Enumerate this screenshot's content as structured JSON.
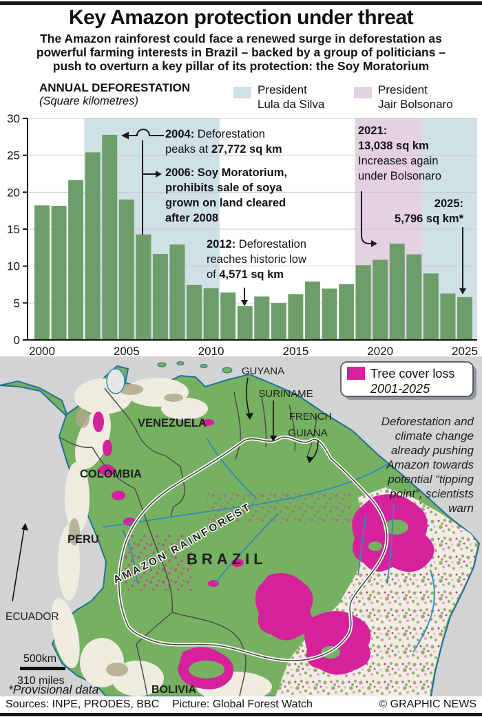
{
  "header": {
    "title": "Key Amazon protection under threat",
    "subtitle_lines": [
      "The Amazon rainforest could face a renewed surge in deforestation as",
      "powerful farming interests in Brazil – backed by a group of politicians –",
      "push to overturn a key pillar of its protection: the Soy Moratorium"
    ]
  },
  "chart": {
    "heading": "ANNUAL DEFORESTATION",
    "heading_sub": "(Square kilometres)",
    "legend": [
      {
        "color": "#cfe0e6",
        "line1": "President",
        "line2": "Lula da Silva"
      },
      {
        "color": "#e4d2e2",
        "line1": "President",
        "line2": "Jair Bolsonaro"
      }
    ],
    "annotations": {
      "a2004": {
        "b1": "2004:",
        "r1": " Deforestation",
        "r2": "peaks at ",
        "b2": "27,772 sq km"
      },
      "a2006": {
        "l1": "2006: Soy Moratorium,",
        "l2": "prohibits sale of soya",
        "l3": "grown on land cleared",
        "l4": "after 2008"
      },
      "a2012": {
        "b1": "2012:",
        "r1": " Deforestation",
        "r2": "reaches historic low",
        "r3": "of ",
        "b2": "4,571 sq km"
      },
      "a2021": {
        "b1": "2021:",
        "b2": "13,038 sq km",
        "r1": "Increases again",
        "r2": "under Bolsonaro"
      },
      "a2025": {
        "b1": "2025:",
        "b2": "5,796 sq km*"
      }
    }
  },
  "chart_data": {
    "type": "bar",
    "title": "ANNUAL DEFORESTATION",
    "subtitle": "(Square kilometres)",
    "unit": "sq km (axis shown in thousands)",
    "x": [
      2000,
      2001,
      2002,
      2003,
      2004,
      2005,
      2006,
      2007,
      2008,
      2009,
      2010,
      2011,
      2012,
      2013,
      2014,
      2015,
      2016,
      2017,
      2018,
      2019,
      2020,
      2021,
      2022,
      2023,
      2024,
      2025
    ],
    "values": [
      18226,
      18165,
      21651,
      25396,
      27772,
      19014,
      14286,
      11651,
      12911,
      7464,
      7000,
      6418,
      4571,
      5891,
      5012,
      6207,
      7893,
      6947,
      7536,
      10129,
      10851,
      13038,
      11594,
      9001,
      6288,
      5796
    ],
    "ylim": [
      0,
      30000
    ],
    "y_ticks": [
      0,
      5000,
      10000,
      15000,
      20000,
      25000,
      30000
    ],
    "y_tick_labels": [
      "0",
      "5",
      "10",
      "15",
      "20",
      "25",
      "30"
    ],
    "x_tick_years": [
      2000,
      2005,
      2010,
      2015,
      2020,
      2025
    ],
    "bar_color": "#6d9e6a",
    "grid": true,
    "bands": [
      {
        "label": "President Lula da Silva",
        "from": 2003,
        "to": 2010,
        "color": "#cfe0e6"
      },
      {
        "label": "President Jair Bolsonaro",
        "from": 2019,
        "to": 2022,
        "color": "#e4d2e2"
      },
      {
        "label": "President Lula da Silva",
        "from": 2023,
        "to": 2025,
        "color": "#cfe0e6"
      }
    ],
    "annotations": [
      {
        "year": 2004,
        "text": "2004: Deforestation peaks at 27,772 sq km"
      },
      {
        "year": 2006,
        "text": "2006: Soy Moratorium, prohibits sale of soya grown on land cleared after 2008"
      },
      {
        "year": 2012,
        "text": "2012: Deforestation reaches historic low of 4,571 sq km"
      },
      {
        "year": 2021,
        "text": "2021: 13,038 sq km Increases again under Bolsonaro"
      },
      {
        "year": 2025,
        "text": "2025: 5,796 sq km*"
      }
    ]
  },
  "map": {
    "legend": {
      "swatch_color": "#d6219c",
      "line1": "Tree cover loss",
      "line2": "2001-2025"
    },
    "side_note_lines": [
      "Deforestation and",
      "climate change",
      "already pushing",
      "Amazon towards",
      "potential “tipping",
      "point”, scientists",
      "warn"
    ],
    "labels": {
      "venezuela": "VENEZUELA",
      "colombia": "COLOMBIA",
      "peru": "PERU",
      "ecuador": "ECUADOR",
      "bolivia": "BOLIVIA",
      "brazil": "BRAZIL",
      "guyana": "GUYANA",
      "suriname": "SURINAME",
      "french_guiana_line1": "FRENCH",
      "french_guiana_line2": "GUIANA",
      "amazon": "AMAZON RAINFOREST"
    },
    "scale": {
      "km": "500km",
      "miles": "310 miles"
    },
    "provisional_note": "*Provisional data"
  },
  "footer": {
    "sources": "Sources: INPE, PRODES, BBC",
    "picture": "Picture: Global Forest Watch",
    "copyright": "© GRAPHIC NEWS"
  }
}
